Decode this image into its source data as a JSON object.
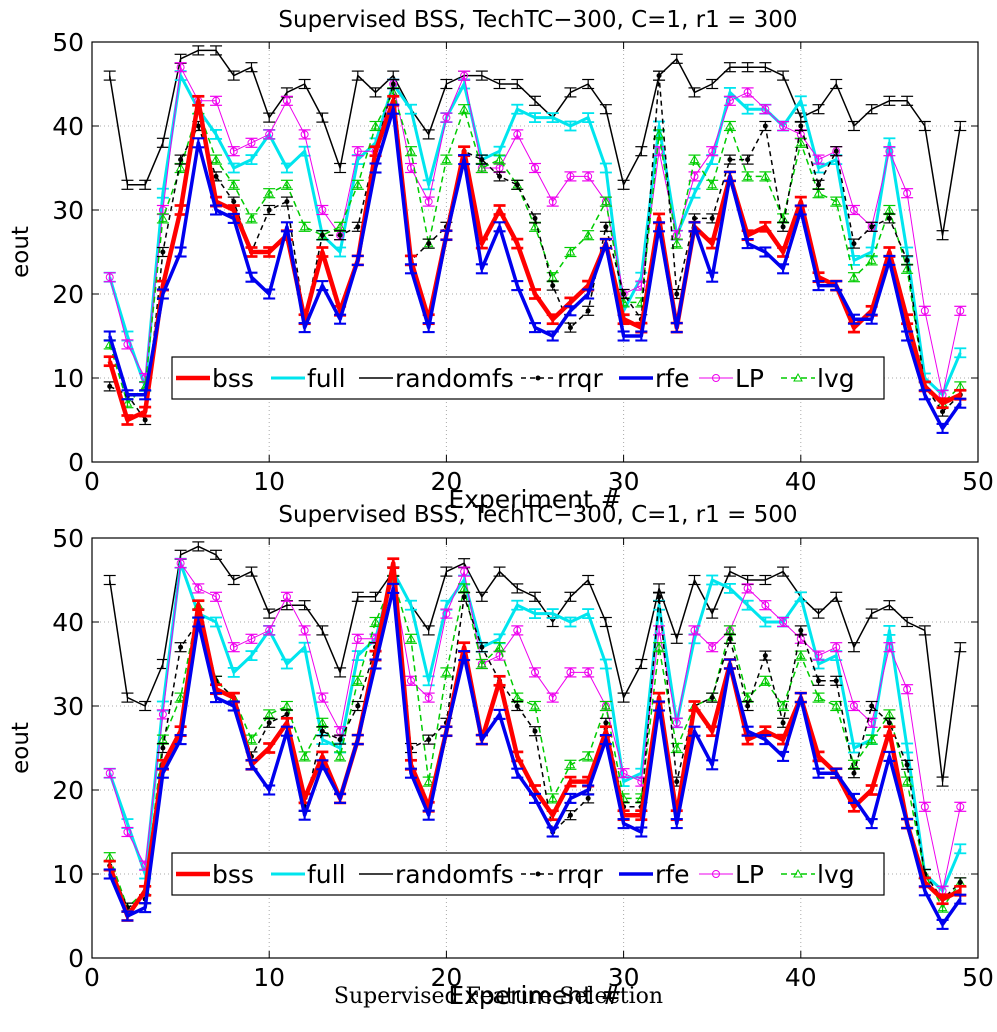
{
  "caption": "Supervised Feature Selection",
  "legend_entries": [
    "bss",
    "full",
    "randomfs",
    "rrqr",
    "rfe",
    "LP",
    "lvg"
  ],
  "chart_data": [
    {
      "type": "line",
      "title": "Supervised BSS, TechTC−300, C=1, r1 = 300",
      "xlabel": "Experiment #",
      "ylabel": "eout",
      "xlim": [
        0,
        50
      ],
      "ylim": [
        0,
        50
      ],
      "xticks": [
        "0",
        "10",
        "20",
        "30",
        "40",
        "50"
      ],
      "yticks": [
        "0",
        "10",
        "20",
        "30",
        "40",
        "50"
      ],
      "grid": true,
      "legend_position": "bottom-center",
      "x": [
        1,
        2,
        3,
        4,
        5,
        6,
        7,
        8,
        9,
        10,
        11,
        12,
        13,
        14,
        15,
        16,
        17,
        18,
        19,
        20,
        21,
        22,
        23,
        24,
        25,
        26,
        27,
        28,
        29,
        30,
        31,
        32,
        33,
        34,
        35,
        36,
        37,
        38,
        39,
        40,
        41,
        42,
        43,
        44,
        45,
        46,
        47,
        48,
        49
      ],
      "series": [
        {
          "name": "randomfs",
          "color": "#000000",
          "values": [
            46,
            33,
            33,
            38,
            48,
            49,
            49,
            46,
            47,
            41,
            44,
            45,
            41,
            35,
            46,
            44,
            46,
            42,
            39,
            45,
            46,
            46,
            45,
            45,
            43,
            41,
            44,
            45,
            42,
            33,
            37,
            46,
            48,
            44,
            45,
            47,
            47,
            47,
            46,
            41,
            42,
            45,
            40,
            42,
            43,
            43,
            40,
            27,
            40
          ]
        },
        {
          "name": "full",
          "color": "#00e5ee",
          "values": [
            22,
            15,
            9,
            32,
            46,
            42,
            39,
            35,
            36,
            39,
            35,
            37,
            27,
            25,
            36,
            38,
            45,
            42,
            33,
            41,
            45,
            36,
            37,
            42,
            41,
            41,
            40,
            41,
            35,
            18,
            22,
            40,
            27,
            32,
            36,
            44,
            42,
            42,
            40,
            43,
            35,
            36,
            24,
            25,
            38,
            25,
            10,
            8,
            13
          ]
        },
        {
          "name": "LP",
          "color": "#ee00ee",
          "values": [
            22,
            14,
            10,
            30,
            47,
            43,
            43,
            37,
            38,
            39,
            43,
            39,
            30,
            27,
            37,
            37,
            45,
            35,
            31,
            41,
            46,
            35,
            35,
            39,
            35,
            31,
            34,
            34,
            31,
            20,
            21,
            37,
            27,
            34,
            37,
            43,
            44,
            42,
            40,
            39,
            36,
            37,
            30,
            28,
            37,
            32,
            18,
            8,
            18
          ]
        },
        {
          "name": "lvg",
          "color": "#00cc00",
          "values": [
            14,
            7,
            9,
            29,
            35,
            42,
            36,
            33,
            29,
            32,
            33,
            28,
            27,
            28,
            33,
            40,
            44,
            37,
            26,
            36,
            42,
            35,
            36,
            33,
            28,
            22,
            25,
            27,
            31,
            19,
            19,
            39,
            26,
            36,
            33,
            40,
            34,
            34,
            29,
            38,
            32,
            31,
            22,
            24,
            30,
            23,
            9,
            7,
            9
          ]
        },
        {
          "name": "rrqr",
          "color": "#000000",
          "values": [
            9,
            8,
            5,
            25,
            36,
            40,
            34,
            31,
            25,
            30,
            31,
            17,
            27,
            27,
            28,
            37,
            45,
            24,
            26,
            28,
            37,
            36,
            34,
            33,
            29,
            21,
            16,
            18,
            28,
            20,
            17,
            46,
            20,
            29,
            29,
            36,
            36,
            40,
            28,
            40,
            33,
            37,
            26,
            28,
            29,
            24,
            9,
            6,
            8
          ]
        },
        {
          "name": "bss",
          "color": "#ff0000",
          "values": [
            12,
            5,
            6,
            21,
            30,
            43,
            31,
            30,
            25,
            25,
            27,
            17,
            25,
            18,
            24,
            37,
            43,
            24,
            17,
            27,
            37,
            26,
            30,
            26,
            20,
            17,
            19,
            21,
            26,
            17,
            16,
            29,
            16,
            28,
            26,
            34,
            27,
            28,
            25,
            31,
            22,
            21,
            16,
            18,
            25,
            17,
            9,
            7,
            8
          ]
        },
        {
          "name": "rfe",
          "color": "#0000ee",
          "values": [
            15,
            8,
            8,
            20,
            25,
            38,
            30,
            29,
            22,
            20,
            28,
            16,
            21,
            17,
            24,
            35,
            42,
            23,
            16,
            27,
            36,
            23,
            28,
            21,
            16,
            15,
            18,
            20,
            26,
            15,
            15,
            28,
            16,
            28,
            22,
            34,
            26,
            25,
            23,
            30,
            21,
            21,
            17,
            17,
            24,
            15,
            8,
            4,
            7
          ]
        }
      ]
    },
    {
      "type": "line",
      "title": "Supervised BSS, TechTC−300, C=1, r1 = 500",
      "xlabel": "Experiment #",
      "ylabel": "eout",
      "xlim": [
        0,
        50
      ],
      "ylim": [
        0,
        50
      ],
      "xticks": [
        "0",
        "10",
        "20",
        "30",
        "40",
        "50"
      ],
      "yticks": [
        "0",
        "10",
        "20",
        "30",
        "40",
        "50"
      ],
      "grid": true,
      "legend_position": "bottom-center",
      "x": [
        1,
        2,
        3,
        4,
        5,
        6,
        7,
        8,
        9,
        10,
        11,
        12,
        13,
        14,
        15,
        16,
        17,
        18,
        19,
        20,
        21,
        22,
        23,
        24,
        25,
        26,
        27,
        28,
        29,
        30,
        31,
        32,
        33,
        34,
        35,
        36,
        37,
        38,
        39,
        40,
        41,
        42,
        43,
        44,
        45,
        46,
        47,
        48,
        49
      ],
      "series": [
        {
          "name": "randomfs",
          "color": "#000000",
          "values": [
            45,
            31,
            30,
            35,
            48,
            49,
            48,
            45,
            46,
            41,
            42,
            42,
            39,
            34,
            43,
            43,
            46,
            42,
            39,
            46,
            47,
            43,
            46,
            44,
            43,
            40,
            43,
            45,
            40,
            31,
            35,
            44,
            38,
            45,
            41,
            46,
            45,
            45,
            46,
            43,
            41,
            43,
            37,
            41,
            42,
            40,
            39,
            21,
            37
          ]
        },
        {
          "name": "full",
          "color": "#00e5ee",
          "values": [
            22,
            16,
            10,
            30,
            47,
            41,
            40,
            34,
            36,
            39,
            35,
            37,
            26,
            25,
            36,
            38,
            46,
            42,
            33,
            42,
            45,
            37,
            38,
            42,
            41,
            41,
            40,
            41,
            35,
            21,
            22,
            42,
            28,
            38,
            45,
            44,
            42,
            40,
            40,
            43,
            35,
            36,
            25,
            26,
            39,
            25,
            10,
            8,
            13
          ]
        },
        {
          "name": "LP",
          "color": "#ee00ee",
          "values": [
            22,
            15,
            11,
            29,
            47,
            44,
            43,
            37,
            38,
            39,
            43,
            39,
            31,
            27,
            38,
            38,
            45,
            33,
            31,
            41,
            46,
            35,
            36,
            39,
            34,
            31,
            34,
            34,
            30,
            22,
            21,
            39,
            28,
            39,
            37,
            39,
            44,
            42,
            40,
            38,
            36,
            37,
            30,
            28,
            37,
            32,
            18,
            8,
            18
          ]
        },
        {
          "name": "lvg",
          "color": "#00cc00",
          "values": [
            12,
            6,
            8,
            26,
            31,
            42,
            33,
            31,
            26,
            29,
            30,
            24,
            28,
            24,
            33,
            40,
            45,
            38,
            21,
            34,
            44,
            35,
            37,
            31,
            30,
            19,
            23,
            24,
            30,
            19,
            19,
            37,
            25,
            30,
            31,
            39,
            31,
            33,
            30,
            36,
            31,
            30,
            23,
            26,
            29,
            21,
            10,
            6,
            9
          ]
        },
        {
          "name": "rrqr",
          "color": "#000000",
          "values": [
            11,
            6,
            7,
            25,
            37,
            40,
            33,
            31,
            24,
            28,
            29,
            18,
            27,
            26,
            30,
            37,
            46,
            25,
            26,
            28,
            43,
            37,
            33,
            30,
            27,
            15,
            17,
            19,
            28,
            18,
            18,
            43,
            21,
            30,
            31,
            38,
            30,
            36,
            28,
            39,
            33,
            33,
            22,
            30,
            28,
            23,
            10,
            7,
            9
          ]
        },
        {
          "name": "bss",
          "color": "#ff0000",
          "values": [
            11,
            5,
            8,
            23,
            27,
            42,
            32,
            31,
            23,
            25,
            28,
            19,
            24,
            19,
            26,
            36,
            47,
            23,
            18,
            27,
            37,
            26,
            33,
            24,
            20,
            17,
            21,
            21,
            27,
            17,
            17,
            31,
            17,
            30,
            27,
            35,
            26,
            27,
            26,
            31,
            24,
            22,
            18,
            20,
            27,
            16,
            9,
            7,
            8
          ]
        },
        {
          "name": "rfe",
          "color": "#0000ee",
          "values": [
            10,
            5,
            6,
            22,
            26,
            40,
            31,
            30,
            23,
            20,
            27,
            17,
            23,
            19,
            26,
            35,
            44,
            22,
            17,
            27,
            36,
            26,
            29,
            22,
            19,
            15,
            19,
            20,
            26,
            16,
            15,
            30,
            16,
            27,
            23,
            35,
            27,
            26,
            24,
            31,
            22,
            22,
            19,
            16,
            24,
            16,
            8,
            4,
            7
          ]
        }
      ]
    }
  ]
}
